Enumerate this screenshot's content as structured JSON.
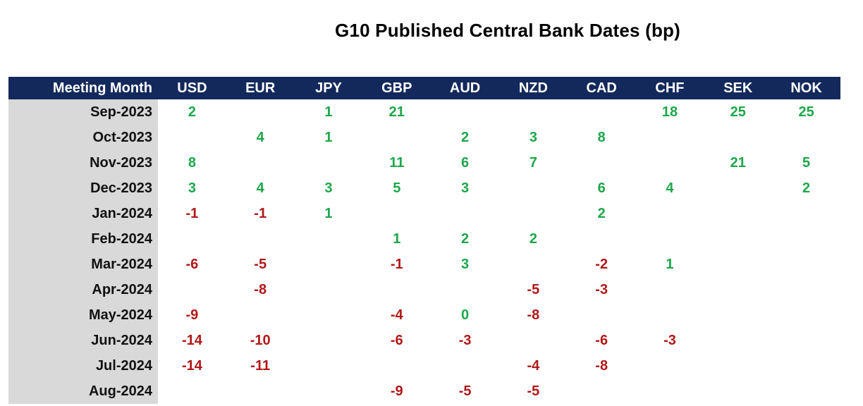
{
  "chart_data": {
    "type": "table",
    "title": "G10 Published Central Bank Dates (bp)",
    "row_header": "Meeting Month",
    "columns": [
      "USD",
      "EUR",
      "JPY",
      "GBP",
      "AUD",
      "NZD",
      "CAD",
      "CHF",
      "SEK",
      "NOK"
    ],
    "rows": [
      {
        "month": "Sep-2023",
        "values": [
          "2",
          "",
          "1",
          "21",
          "",
          "",
          "",
          "18",
          "25",
          "25"
        ]
      },
      {
        "month": "Oct-2023",
        "values": [
          "",
          "4",
          "1",
          "",
          "2",
          "3",
          "8",
          "",
          "",
          ""
        ]
      },
      {
        "month": "Nov-2023",
        "values": [
          "8",
          "",
          "",
          "11",
          "6",
          "7",
          "",
          "",
          "21",
          "5"
        ]
      },
      {
        "month": "Dec-2023",
        "values": [
          "3",
          "4",
          "3",
          "5",
          "3",
          "",
          "6",
          "4",
          "",
          "2"
        ]
      },
      {
        "month": "Jan-2024",
        "values": [
          "-1",
          "-1",
          "1",
          "",
          "",
          "",
          "2",
          "",
          "",
          ""
        ]
      },
      {
        "month": "Feb-2024",
        "values": [
          "",
          "",
          "",
          "1",
          "2",
          "2",
          "",
          "",
          "",
          ""
        ]
      },
      {
        "month": "Mar-2024",
        "values": [
          "-6",
          "-5",
          "",
          "-1",
          "3",
          "",
          "-2",
          "1",
          "",
          ""
        ]
      },
      {
        "month": "Apr-2024",
        "values": [
          "",
          "-8",
          "",
          "",
          "",
          "-5",
          "-3",
          "",
          "",
          ""
        ]
      },
      {
        "month": "May-2024",
        "values": [
          "-9",
          "",
          "",
          "-4",
          "0",
          "-8",
          "",
          "",
          "",
          ""
        ]
      },
      {
        "month": "Jun-2024",
        "values": [
          "-14",
          "-10",
          "",
          "-6",
          "-3",
          "",
          "-6",
          "-3",
          "",
          ""
        ]
      },
      {
        "month": "Jul-2024",
        "values": [
          "-14",
          "-11",
          "",
          "",
          "",
          "-4",
          "-8",
          "",
          "",
          ""
        ]
      },
      {
        "month": "Aug-2024",
        "values": [
          "",
          "",
          "",
          "-9",
          "-5",
          "-5",
          "",
          "",
          "",
          ""
        ]
      }
    ]
  },
  "colors": {
    "header_bg": "#13295c",
    "header_text": "#ffffff",
    "month_col_bg": "#d9d9d9",
    "positive": "#1ea64a",
    "negative": "#b01818"
  }
}
